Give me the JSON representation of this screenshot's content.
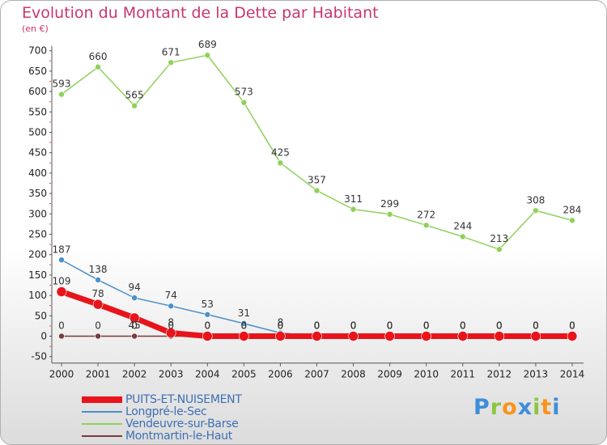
{
  "chart_data": {
    "type": "line",
    "title": "Evolution du Montant de la Dette par Habitant",
    "unit_label": "(en €)",
    "xlabel": "",
    "ylabel": "",
    "ylim": [
      -50,
      700
    ],
    "ytick_step": 50,
    "grid": false,
    "legend_position": "bottom-left",
    "x": [
      "2000",
      "2001",
      "2002",
      "2003",
      "2004",
      "2005",
      "2006",
      "2007",
      "2008",
      "2009",
      "2010",
      "2011",
      "2012",
      "2013",
      "2014"
    ],
    "series": [
      {
        "name": "PUITS-ET-NUISEMENT",
        "color": "#e8141b",
        "values": [
          109,
          78,
          45,
          8,
          0,
          0,
          0,
          0,
          0,
          0,
          0,
          0,
          0,
          0,
          0
        ],
        "labels": [
          "109",
          "78",
          "45",
          "8",
          "0",
          "0",
          "0",
          "0",
          "0",
          "0",
          "0",
          "0",
          "0",
          "0",
          "0"
        ]
      },
      {
        "name": "Longpré-le-Sec",
        "color": "#4a90c8",
        "values": [
          187,
          138,
          94,
          74,
          53,
          31,
          8,
          0,
          0,
          0,
          0,
          0,
          0,
          0,
          0
        ],
        "labels": [
          "187",
          "138",
          "94",
          "74",
          "53",
          "31",
          "8",
          "0",
          "0",
          "0",
          "0",
          "0",
          "0",
          "0",
          "0"
        ]
      },
      {
        "name": "Vendeuvre-sur-Barse",
        "color": "#8fd15a",
        "values": [
          593,
          660,
          565,
          671,
          689,
          573,
          425,
          357,
          311,
          299,
          272,
          244,
          213,
          308,
          284
        ],
        "labels": [
          "593",
          "660",
          "565",
          "671",
          "689",
          "573",
          "425",
          "357",
          "311",
          "299",
          "272",
          "244",
          "213",
          "308",
          "284"
        ]
      },
      {
        "name": "Montmartin-le-Haut",
        "color": "#7a3b3b",
        "values": [
          0,
          0,
          0,
          0,
          0,
          0,
          0,
          0,
          0,
          0,
          0,
          0,
          0,
          0,
          0
        ],
        "labels": [
          "0",
          "0",
          "0",
          "0",
          "0",
          "0",
          "0",
          "0",
          "0",
          "0",
          "0",
          "0",
          "0",
          "0",
          "0"
        ]
      }
    ]
  },
  "brand": {
    "letters": [
      "P",
      "r",
      "o",
      "x",
      "i",
      "t",
      "i"
    ],
    "letter_colors": [
      "#3d8ed8",
      "#8cc63f",
      "#f7941d",
      "#3d8ed8",
      "#8cc63f",
      "#f7941d",
      "#3d8ed8"
    ]
  }
}
